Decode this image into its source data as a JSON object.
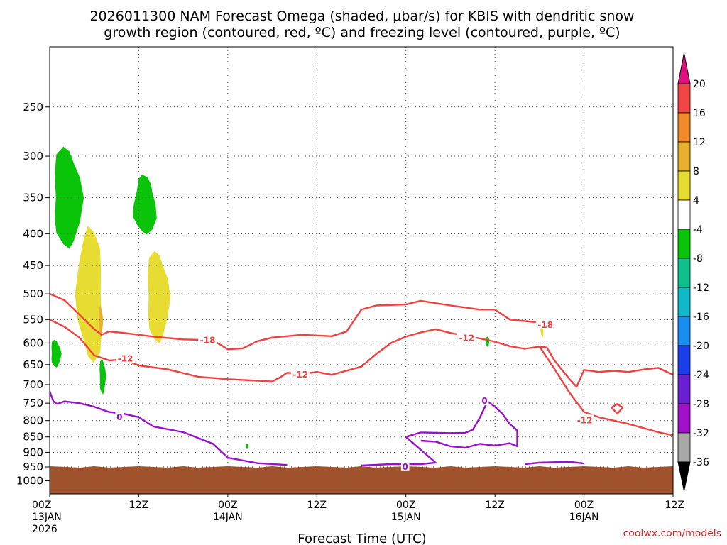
{
  "title": {
    "line1": "2026011300 NAM Forecast Omega (shaded, μbar/s) for KBIS with dendritic snow",
    "line2": "growth region (contoured, red, ºC) and freezing level (contoured, purple, ºC)"
  },
  "credit": "coolwx.com/models",
  "chart_data": {
    "type": "time-height cross section",
    "title": "2026011300 NAM Forecast Omega (shaded, μbar/s) for KBIS with dendritic snow growth region (contoured, red, ºC) and freezing level (contoured, purple, ºC)",
    "xlabel": "Forecast Time (UTC)",
    "ylabel": "",
    "x_range_hours": [
      0,
      84
    ],
    "y_scale": "log-pressure",
    "ylim_hpa": [
      1050,
      200
    ],
    "y_ticks": [
      "250",
      "300",
      "350",
      "400",
      "450",
      "500",
      "550",
      "600",
      "650",
      "700",
      "750",
      "800",
      "850",
      "900",
      "950",
      "1000"
    ],
    "x_ticks": [
      {
        "hour": 0,
        "lines": [
          "00Z",
          "13JAN",
          "2026"
        ]
      },
      {
        "hour": 12,
        "lines": [
          "12Z"
        ]
      },
      {
        "hour": 24,
        "lines": [
          "00Z",
          "14JAN"
        ]
      },
      {
        "hour": 36,
        "lines": [
          "12Z"
        ]
      },
      {
        "hour": 48,
        "lines": [
          "00Z",
          "15JAN"
        ]
      },
      {
        "hour": 60,
        "lines": [
          "12Z"
        ]
      },
      {
        "hour": 72,
        "lines": [
          "00Z",
          "16JAN"
        ]
      },
      {
        "hour": 84,
        "lines": [
          "12Z"
        ]
      }
    ],
    "grid": true,
    "colorbar": {
      "units": "μbar/s",
      "bins": [
        {
          "from": 20,
          "to": null,
          "color": "#e0117f"
        },
        {
          "from": 16,
          "to": 20,
          "color": "#f04545"
        },
        {
          "from": 12,
          "to": 16,
          "color": "#f08a2a"
        },
        {
          "from": 8,
          "to": 12,
          "color": "#e8b030"
        },
        {
          "from": 4,
          "to": 8,
          "color": "#e6dc32"
        },
        {
          "from": -4,
          "to": 4,
          "color": "#ffffff"
        },
        {
          "from": -8,
          "to": -4,
          "color": "#0ac40a"
        },
        {
          "from": -12,
          "to": -8,
          "color": "#10c08a"
        },
        {
          "from": -16,
          "to": -12,
          "color": "#10b8c8"
        },
        {
          "from": -20,
          "to": -16,
          "color": "#1a8ef0"
        },
        {
          "from": -24,
          "to": -20,
          "color": "#1a3ee8"
        },
        {
          "from": -28,
          "to": -24,
          "color": "#6a20d0"
        },
        {
          "from": -32,
          "to": -28,
          "color": "#a010c8"
        },
        {
          "from": -36,
          "to": -32,
          "color": "#a8a8a8"
        },
        {
          "from": null,
          "to": -36,
          "color": "#000000"
        }
      ],
      "labels": [
        "20",
        "16",
        "12",
        "8",
        "4",
        "-4",
        "-8",
        "-12",
        "-16",
        "-20",
        "-24",
        "-28",
        "-32",
        "-36"
      ]
    },
    "terrain": {
      "color": "#a0522d",
      "approx_top_hpa": 950
    },
    "shaded_regions": [
      {
        "value_bin": "-8 to -4",
        "color": "#0ac40a",
        "hour_range": [
          0,
          4.6
        ],
        "p_range_hpa": [
          285,
          430
        ]
      },
      {
        "value_bin": "-8 to -4",
        "color": "#0ac40a",
        "hour_range": [
          11,
          14.6
        ],
        "p_range_hpa": [
          318,
          405
        ]
      },
      {
        "value_bin": "-8 to -4",
        "color": "#0ac40a",
        "hour_range": [
          0,
          1.6
        ],
        "p_range_hpa": [
          590,
          660
        ]
      },
      {
        "value_bin": "-8 to -4",
        "color": "#0ac40a",
        "hour_range": [
          6.6,
          7.6
        ],
        "p_range_hpa": [
          633,
          730
        ]
      },
      {
        "value_bin": "-8 to -4",
        "color": "#0ac40a",
        "hour_range": [
          26.4,
          26.8
        ],
        "p_range_hpa": [
          870,
          890
        ]
      },
      {
        "value_bin": "-8 to -4",
        "color": "#0ac40a",
        "hour_range": [
          58.7,
          59.3
        ],
        "p_range_hpa": [
          585,
          610
        ]
      },
      {
        "value_bin": "4 to 8",
        "color": "#e6dc32",
        "hour_range": [
          3.4,
          7.6
        ],
        "p_range_hpa": [
          380,
          660
        ]
      },
      {
        "value_bin": "4 to 8",
        "color": "#e6dc32",
        "hour_range": [
          12.7,
          16.3
        ],
        "p_range_hpa": [
          420,
          610
        ]
      },
      {
        "value_bin": "4 to 8",
        "color": "#e6dc32",
        "hour_range": [
          66.1,
          66.6
        ],
        "p_range_hpa": [
          545,
          590
        ]
      },
      {
        "value_bin": "8 to 12",
        "color": "#e8b030",
        "hour_range": [
          6.5,
          7.2
        ],
        "p_range_hpa": [
          520,
          590
        ]
      }
    ],
    "contours": [
      {
        "name": "-18",
        "kind": "dendritic snow growth region",
        "color": "#f04040",
        "unit": "ºC",
        "points": [
          [
            0,
            500
          ],
          [
            2,
            512
          ],
          [
            4,
            540
          ],
          [
            6,
            570
          ],
          [
            7,
            582
          ],
          [
            8,
            575
          ],
          [
            10,
            578
          ],
          [
            14,
            586
          ],
          [
            18,
            592
          ],
          [
            22,
            594
          ],
          [
            24,
            614
          ],
          [
            26,
            612
          ],
          [
            28,
            596
          ],
          [
            30,
            588
          ],
          [
            34,
            582
          ],
          [
            38,
            585
          ],
          [
            40,
            575
          ],
          [
            42,
            530
          ],
          [
            44,
            522
          ],
          [
            48,
            520
          ],
          [
            50,
            513
          ],
          [
            54,
            522
          ],
          [
            58,
            530
          ],
          [
            60,
            530
          ],
          [
            62,
            550
          ],
          [
            66,
            556
          ],
          [
            68,
            556
          ]
        ]
      },
      {
        "name": "-12",
        "kind": "dendritic snow growth region",
        "color": "#f04040",
        "unit": "ºC",
        "points": [
          [
            0,
            550
          ],
          [
            2,
            565
          ],
          [
            4,
            588
          ],
          [
            6,
            628
          ],
          [
            8,
            640
          ],
          [
            10,
            638
          ],
          [
            12,
            652
          ],
          [
            16,
            662
          ],
          [
            20,
            680
          ],
          [
            24,
            686
          ],
          [
            28,
            690
          ],
          [
            30,
            692
          ],
          [
            31,
            682
          ],
          [
            32,
            670
          ],
          [
            34,
            673
          ],
          [
            36,
            668
          ],
          [
            38,
            675
          ],
          [
            42,
            655
          ],
          [
            44,
            625
          ],
          [
            46,
            600
          ],
          [
            48,
            586
          ],
          [
            50,
            577
          ],
          [
            52,
            570
          ],
          [
            54,
            578
          ],
          [
            58,
            590
          ],
          [
            60,
            597
          ],
          [
            62,
            607
          ],
          [
            64,
            613
          ],
          [
            66,
            608
          ],
          [
            67,
            610
          ],
          [
            68,
            640
          ],
          [
            70,
            685
          ],
          [
            71,
            706
          ],
          [
            72,
            663
          ],
          [
            74,
            668
          ],
          [
            76,
            665
          ],
          [
            78,
            668
          ],
          [
            80,
            662
          ],
          [
            82,
            658
          ],
          [
            84,
            675
          ]
        ]
      },
      {
        "name": "-12",
        "kind": "dendritic snow growth region",
        "color": "#f04040",
        "unit": "ºC",
        "points": [
          [
            66,
            608
          ],
          [
            68,
            660
          ],
          [
            70,
            720
          ],
          [
            72,
            775
          ],
          [
            74,
            790
          ],
          [
            78,
            810
          ],
          [
            82,
            835
          ],
          [
            84,
            845
          ]
        ]
      },
      {
        "name": "0",
        "kind": "freezing level",
        "color": "#9a10cc",
        "unit": "ºC",
        "points": [
          [
            0,
            718
          ],
          [
            0.5,
            745
          ],
          [
            1,
            752
          ],
          [
            2,
            745
          ],
          [
            4,
            750
          ],
          [
            6,
            760
          ],
          [
            8,
            775
          ],
          [
            10,
            780
          ],
          [
            12,
            790
          ],
          [
            14,
            818
          ],
          [
            18,
            835
          ],
          [
            22,
            872
          ],
          [
            24,
            918
          ],
          [
            28,
            937
          ],
          [
            32,
            943
          ]
        ]
      },
      {
        "name": "0",
        "kind": "freezing level",
        "color": "#9a10cc",
        "unit": "ºC",
        "points": [
          [
            42,
            945
          ],
          [
            46,
            940
          ],
          [
            50,
            940
          ],
          [
            52,
            935
          ],
          [
            48,
            850
          ],
          [
            50,
            836
          ],
          [
            54,
            838
          ],
          [
            56,
            837
          ],
          [
            57,
            828
          ],
          [
            58,
            790
          ],
          [
            59,
            745
          ],
          [
            60,
            760
          ],
          [
            61,
            780
          ],
          [
            62,
            810
          ],
          [
            63,
            830
          ],
          [
            63,
            880
          ],
          [
            62,
            870
          ],
          [
            60,
            878
          ],
          [
            58,
            872
          ],
          [
            56,
            885
          ],
          [
            54,
            880
          ],
          [
            52,
            865
          ],
          [
            50,
            862
          ]
        ]
      },
      {
        "name": "0",
        "kind": "freezing level",
        "color": "#9a10cc",
        "unit": "ºC",
        "points": [
          [
            64,
            940
          ],
          [
            66,
            935
          ],
          [
            70,
            932
          ],
          [
            72,
            938
          ]
        ]
      },
      {
        "name": "",
        "kind": "-12 closed contour",
        "color": "#f04040",
        "unit": "ºC",
        "points": [
          [
            75.7,
            762
          ],
          [
            76.5,
            752
          ],
          [
            77.2,
            762
          ],
          [
            76.5,
            780
          ],
          [
            75.7,
            762
          ]
        ]
      }
    ],
    "contour_labels": [
      {
        "text": "-18",
        "hour": 21.3,
        "p_hpa": 592,
        "color": "#f04040"
      },
      {
        "text": "-12",
        "hour": 10.2,
        "p_hpa": 634,
        "color": "#f04040"
      },
      {
        "text": "-12",
        "hour": 33.8,
        "p_hpa": 673,
        "color": "#f04040"
      },
      {
        "text": "-12",
        "hour": 56.2,
        "p_hpa": 588,
        "color": "#f04040"
      },
      {
        "text": "-18",
        "hour": 66.8,
        "p_hpa": 560,
        "color": "#f04040"
      },
      {
        "text": "-12",
        "hour": 72.1,
        "p_hpa": 797,
        "color": "#f04040"
      },
      {
        "text": "0",
        "hour": 9.4,
        "p_hpa": 788,
        "color": "#9a10cc"
      },
      {
        "text": "0",
        "hour": 58.6,
        "p_hpa": 742,
        "color": "#9a10cc"
      },
      {
        "text": "0",
        "hour": 47.9,
        "p_hpa": 947,
        "color": "#9a10cc"
      }
    ]
  }
}
